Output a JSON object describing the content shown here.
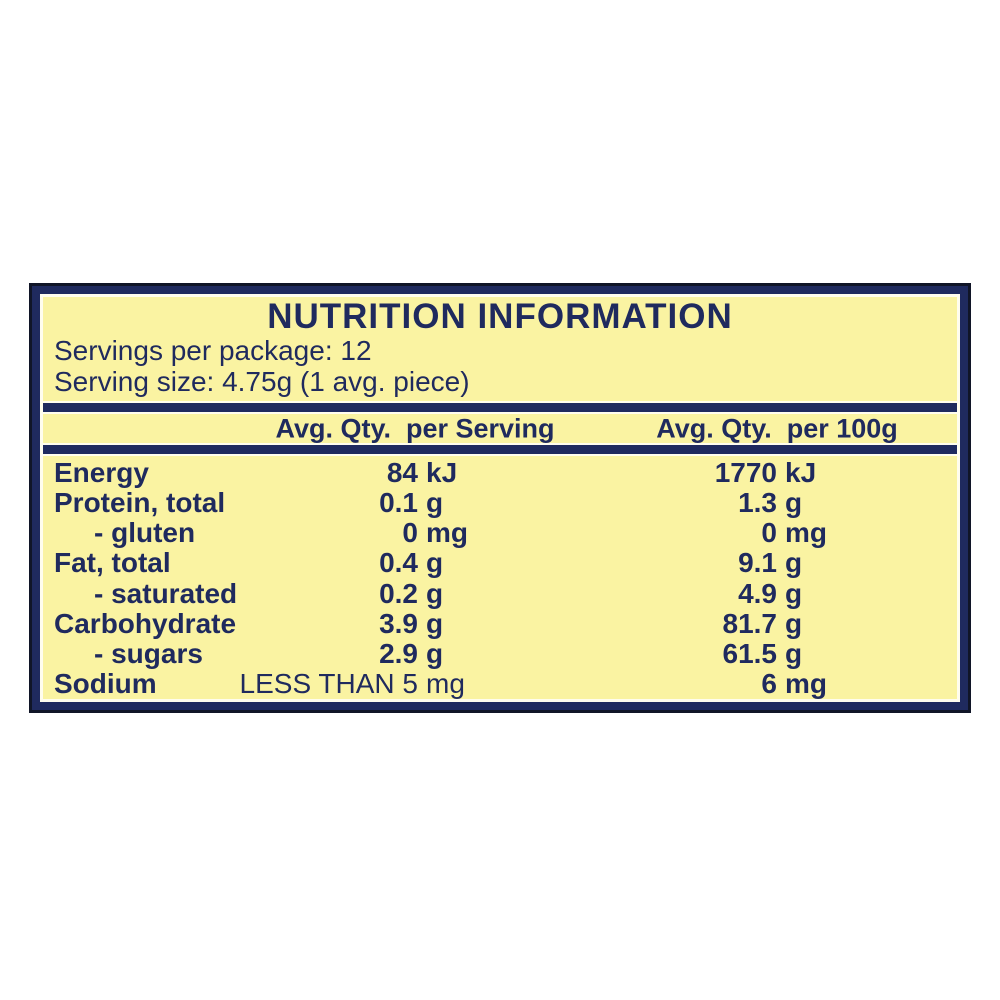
{
  "panel": {
    "title": "NUTRITION INFORMATION",
    "servings_per_package": "Servings per package: 12",
    "serving_size": "Serving size: 4.75g (1 avg. piece)",
    "columns": {
      "per_serving": "Avg. Qty.  per Serving",
      "per_100g": "Avg. Qty.  per 100g"
    },
    "rows": [
      {
        "label": "Energy",
        "serving_num": "84",
        "serving_unit": "kJ",
        "per100g_num": "1770",
        "per100g_unit": "kJ"
      },
      {
        "label": "Protein, total",
        "serving_num": "0.1",
        "serving_unit": "g",
        "per100g_num": "1.3",
        "per100g_unit": "g"
      },
      {
        "label": "- gluten",
        "serving_num": "0",
        "serving_unit": "mg",
        "per100g_num": "0",
        "per100g_unit": "mg"
      },
      {
        "label": "Fat, total",
        "serving_num": "0.4",
        "serving_unit": "g",
        "per100g_num": "9.1",
        "per100g_unit": "g"
      },
      {
        "label": "- saturated",
        "serving_num": "0.2",
        "serving_unit": "g",
        "per100g_num": "4.9",
        "per100g_unit": "g"
      },
      {
        "label": "Carbohydrate",
        "serving_num": "3.9",
        "serving_unit": "g",
        "per100g_num": "81.7",
        "per100g_unit": "g"
      },
      {
        "label": "- sugars",
        "serving_num": "2.9",
        "serving_unit": "g",
        "per100g_num": "61.5",
        "per100g_unit": "g"
      },
      {
        "label": "Sodium",
        "serving_num": "LESS THAN 5",
        "serving_unit": "mg",
        "per100g_num": "6",
        "per100g_unit": "mg"
      }
    ],
    "colors": {
      "text_navy": "#1f2a5e",
      "panel_yellow": "#faf3a2",
      "hairline_cream": "#fffdee",
      "outline_dark": "#101527",
      "page_bg": "#ffffff"
    }
  }
}
